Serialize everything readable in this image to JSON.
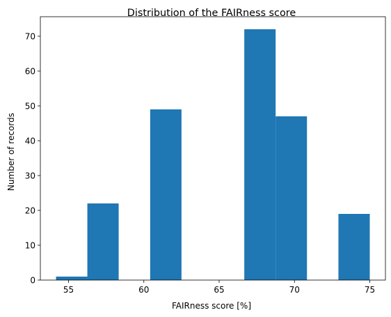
{
  "chart_data": {
    "type": "bar",
    "subtype": "histogram",
    "title": "Distribution of the FAIRness score",
    "xlabel": "FAIRness score [%]",
    "ylabel": "Number of records",
    "bar_color": "#1f77b4",
    "bins": [
      {
        "x0": 54.17,
        "x1": 56.25,
        "count": 1
      },
      {
        "x0": 56.25,
        "x1": 58.33,
        "count": 22
      },
      {
        "x0": 58.33,
        "x1": 60.42,
        "count": 0
      },
      {
        "x0": 60.42,
        "x1": 62.5,
        "count": 49
      },
      {
        "x0": 62.5,
        "x1": 64.58,
        "count": 0
      },
      {
        "x0": 64.58,
        "x1": 66.67,
        "count": 0
      },
      {
        "x0": 66.67,
        "x1": 68.75,
        "count": 72
      },
      {
        "x0": 68.75,
        "x1": 70.83,
        "count": 47
      },
      {
        "x0": 70.83,
        "x1": 72.92,
        "count": 0
      },
      {
        "x0": 72.92,
        "x1": 75.0,
        "count": 19
      }
    ],
    "xlim": [
      53.13,
      76.04
    ],
    "ylim": [
      0,
      75.6
    ],
    "xticks": [
      55,
      60,
      65,
      70,
      75
    ],
    "yticks": [
      0,
      10,
      20,
      30,
      40,
      50,
      60,
      70
    ],
    "grid": false,
    "legend": "none"
  }
}
